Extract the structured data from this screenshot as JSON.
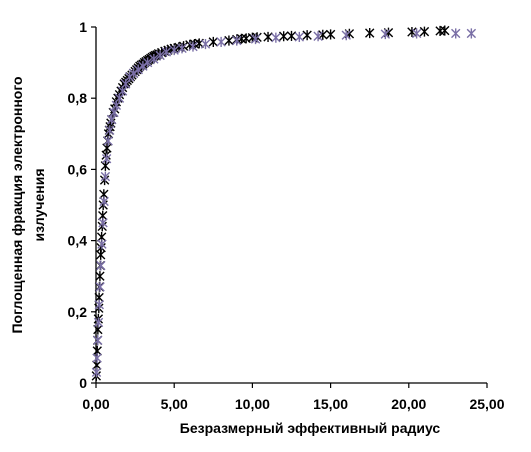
{
  "chart_data": {
    "type": "scatter",
    "title": "",
    "xlabel": "Безразмерный эффективный радиус",
    "ylabel_lines": [
      "Поглощенная  фракция  электронного",
      "излучения"
    ],
    "xlim": [
      0,
      25
    ],
    "ylim": [
      0,
      1
    ],
    "x_ticks": [
      "0,00",
      "5,00",
      "10,00",
      "15,00",
      "20,00",
      "25,00"
    ],
    "y_ticks": [
      "0",
      "0,2",
      "0,4",
      "0,6",
      "0,8",
      "1"
    ],
    "grid": false,
    "legend": "none",
    "marker": "asterisk",
    "series": [
      {
        "color": "#000000",
        "x": [
          0.02,
          0.05,
          0.08,
          0.1,
          0.12,
          0.15,
          0.18,
          0.2,
          0.22,
          0.25,
          0.28,
          0.3,
          0.33,
          0.36,
          0.4,
          0.43,
          0.46,
          0.5,
          0.55,
          0.6,
          0.65,
          0.7,
          0.75,
          0.8,
          0.85,
          0.9,
          0.95,
          1.0,
          1.1,
          1.2,
          1.3,
          1.4,
          1.5,
          1.6,
          1.7,
          1.8,
          1.9,
          2.0,
          2.1,
          2.2,
          2.3,
          2.4,
          2.5,
          2.6,
          2.7,
          2.8,
          2.9,
          3.0,
          3.1,
          3.2,
          3.3,
          3.4,
          3.5,
          3.6,
          3.7,
          3.8,
          3.9,
          4.0,
          4.2,
          4.4,
          4.6,
          4.8,
          5.0,
          5.3,
          5.6,
          6.0,
          6.3,
          6.6,
          7.5,
          8.5,
          9.0,
          9.3,
          9.6,
          10.0,
          10.3,
          11.0,
          12.0,
          12.5,
          13.5,
          14.5,
          15.0,
          16.2,
          17.5,
          18.7,
          20.2,
          21.0,
          22.0,
          22.3
        ],
        "y": [
          0.02,
          0.05,
          0.09,
          0.12,
          0.15,
          0.18,
          0.21,
          0.24,
          0.27,
          0.3,
          0.33,
          0.36,
          0.38,
          0.41,
          0.44,
          0.47,
          0.5,
          0.53,
          0.57,
          0.61,
          0.64,
          0.66,
          0.68,
          0.7,
          0.71,
          0.72,
          0.73,
          0.74,
          0.76,
          0.77,
          0.79,
          0.8,
          0.81,
          0.82,
          0.83,
          0.84,
          0.845,
          0.85,
          0.855,
          0.86,
          0.865,
          0.87,
          0.875,
          0.88,
          0.885,
          0.89,
          0.893,
          0.896,
          0.9,
          0.903,
          0.906,
          0.909,
          0.912,
          0.915,
          0.918,
          0.92,
          0.922,
          0.925,
          0.928,
          0.932,
          0.935,
          0.938,
          0.94,
          0.943,
          0.946,
          0.95,
          0.952,
          0.954,
          0.958,
          0.962,
          0.965,
          0.967,
          0.968,
          0.97,
          0.971,
          0.972,
          0.974,
          0.975,
          0.977,
          0.978,
          0.979,
          0.981,
          0.983,
          0.984,
          0.986,
          0.987,
          0.989,
          0.99
        ]
      },
      {
        "color": "#7a6fa6",
        "x": [
          0.03,
          0.07,
          0.11,
          0.16,
          0.21,
          0.26,
          0.31,
          0.38,
          0.45,
          0.52,
          0.6,
          0.68,
          0.78,
          0.88,
          1.0,
          1.15,
          1.3,
          1.5,
          1.7,
          1.9,
          2.15,
          2.4,
          2.7,
          3.0,
          3.3,
          3.7,
          4.1,
          4.5,
          5.0,
          5.5,
          6.2,
          7.0,
          8.0,
          9.0,
          10.2,
          11.5,
          13.0,
          14.2,
          16.0,
          18.5,
          20.5,
          23.0,
          24.0
        ],
        "y": [
          0.03,
          0.07,
          0.12,
          0.17,
          0.22,
          0.27,
          0.33,
          0.39,
          0.45,
          0.51,
          0.58,
          0.63,
          0.68,
          0.71,
          0.74,
          0.76,
          0.78,
          0.8,
          0.82,
          0.84,
          0.86,
          0.87,
          0.88,
          0.89,
          0.9,
          0.91,
          0.92,
          0.93,
          0.935,
          0.94,
          0.945,
          0.952,
          0.958,
          0.962,
          0.966,
          0.97,
          0.972,
          0.974,
          0.977,
          0.98,
          0.982,
          0.982,
          0.982
        ]
      }
    ]
  }
}
